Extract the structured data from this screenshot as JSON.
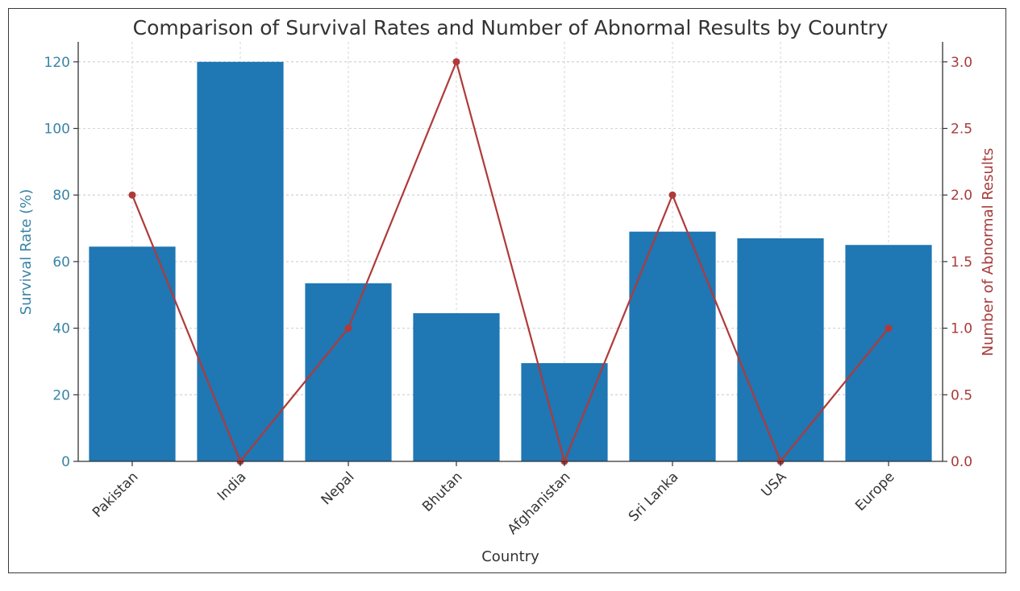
{
  "chart_data": {
    "type": "bar+line",
    "title": "Comparison of Survival Rates and Number of Abnormal Results by Country",
    "xlabel": "Country",
    "ylabel_left": "Survival Rate (%)",
    "ylabel_right": "Number of Abnormal Results",
    "categories": [
      "Pakistan",
      "India",
      "Nepal",
      "Bhutan",
      "Afghanistan",
      "Sri Lanka",
      "USA",
      "Europe"
    ],
    "series": [
      {
        "axis": "left",
        "kind": "bar",
        "values": [
          64.5,
          120,
          53.5,
          44.5,
          29.5,
          69,
          67,
          65
        ]
      },
      {
        "axis": "right",
        "kind": "line",
        "values": [
          2,
          0,
          1,
          3,
          0,
          2,
          0,
          1
        ]
      }
    ],
    "ylim_left": [
      0,
      126
    ],
    "ylim_right": [
      0,
      3.15
    ],
    "yticks_left": [
      0,
      20,
      40,
      60,
      80,
      100,
      120
    ],
    "yticks_right": [
      "0.0",
      "0.5",
      "1.0",
      "1.5",
      "2.0",
      "2.5",
      "3.0"
    ],
    "grid": true,
    "colors": {
      "bars": "#1f77b4",
      "line": "#b03a3a",
      "left_axis_text": "#3a84a6",
      "right_axis_text": "#a83a3a",
      "title_text": "#333333"
    }
  }
}
